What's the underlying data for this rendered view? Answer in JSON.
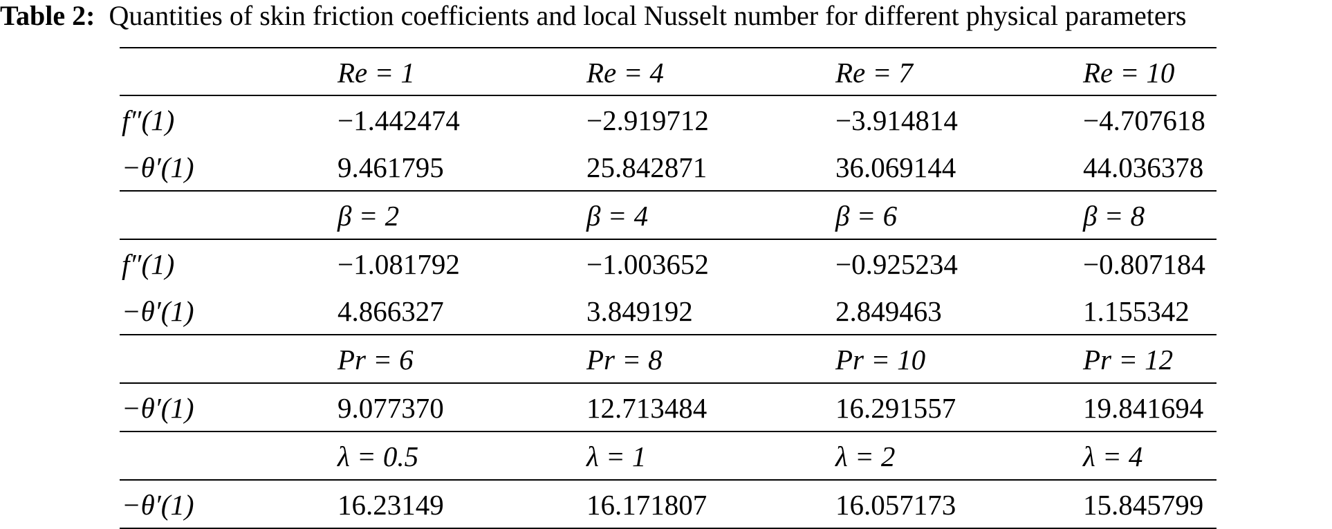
{
  "caption": {
    "label": "Table 2:",
    "text": "Quantities of skin friction coefficients and local Nusselt number for different physical parameters"
  },
  "table": {
    "groups": [
      {
        "headers": [
          "Re = 1",
          "Re = 4",
          "Re = 7",
          "Re = 10"
        ],
        "rows": [
          {
            "label": "f″(1)",
            "values": [
              "−1.442474",
              "−2.919712",
              "−3.914814",
              "−4.707618"
            ]
          },
          {
            "label": "−θ′(1)",
            "values": [
              "9.461795",
              "25.842871",
              "36.069144",
              "44.036378"
            ]
          }
        ]
      },
      {
        "headers": [
          "β = 2",
          "β = 4",
          "β = 6",
          "β = 8"
        ],
        "rows": [
          {
            "label": "f″(1)",
            "values": [
              "−1.081792",
              "−1.003652",
              "−0.925234",
              "−0.807184"
            ]
          },
          {
            "label": "−θ′(1)",
            "values": [
              "4.866327",
              "3.849192",
              "2.849463",
              "1.155342"
            ]
          }
        ]
      },
      {
        "headers": [
          "Pr = 6",
          "Pr = 8",
          "Pr = 10",
          "Pr = 12"
        ],
        "rows": [
          {
            "label": "−θ′(1)",
            "values": [
              "9.077370",
              "12.713484",
              "16.291557",
              "19.841694"
            ]
          }
        ]
      },
      {
        "headers": [
          "λ = 0.5",
          "λ = 1",
          "λ = 2",
          "λ = 4"
        ],
        "rows": [
          {
            "label": "−θ′(1)",
            "values": [
              "16.23149",
              "16.171807",
              "16.057173",
              "15.845799"
            ]
          }
        ]
      }
    ]
  }
}
